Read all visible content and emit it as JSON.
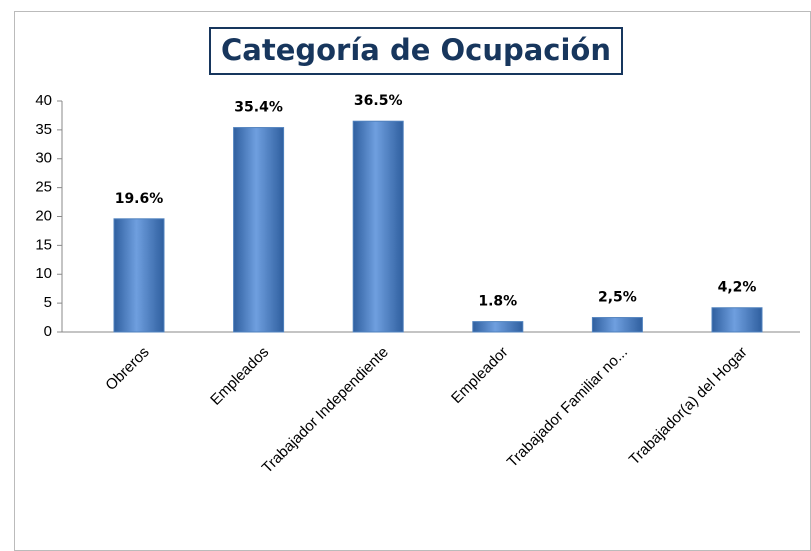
{
  "chart_data": {
    "type": "bar",
    "title": "Categoría de Ocupación",
    "categories": [
      "Obreros",
      "Empleados",
      "Trabajador Independiente",
      "Empleador",
      "Trabajador Familiar  no...",
      "Trabajador(a) del Hogar"
    ],
    "values": [
      19.6,
      35.4,
      36.5,
      1.8,
      2.5,
      4.2
    ],
    "value_labels": [
      "19.6%",
      "35.4%",
      "36.5%",
      "1.8%",
      "2,5%",
      "4,2%"
    ],
    "color": "#4f81bd",
    "ylim": [
      0,
      40
    ],
    "yticks": [
      0,
      5,
      10,
      15,
      20,
      25,
      30,
      35,
      40
    ],
    "grid": false
  }
}
